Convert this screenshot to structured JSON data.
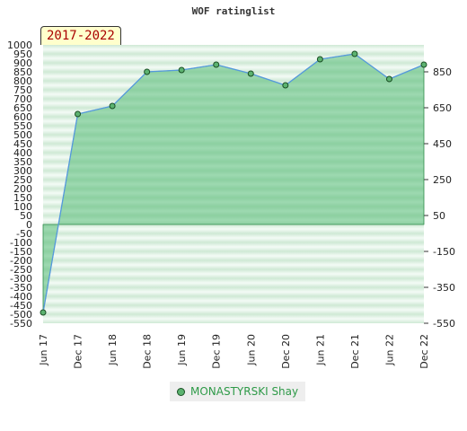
{
  "chart_data": {
    "type": "area",
    "title": "WOF ratinglist",
    "period_label": "2017-2022",
    "categories": [
      "Jun 17",
      "Dec 17",
      "Jun 18",
      "Dec 18",
      "Jun 19",
      "Dec 19",
      "Jun 20",
      "Dec 20",
      "Jun 21",
      "Dec 21",
      "Jun 22",
      "Dec 22"
    ],
    "series": [
      {
        "name": "MONASTYRSKI Shay",
        "values": [
          -490,
          615,
          660,
          850,
          860,
          890,
          840,
          775,
          920,
          950,
          810,
          890
        ]
      }
    ],
    "ylim": [
      -550,
      1000
    ],
    "yticks_left": [
      "1000",
      "950",
      "900",
      "850",
      "800",
      "750",
      "700",
      "650",
      "600",
      "550",
      "500",
      "450",
      "400",
      "350",
      "300",
      "250",
      "200",
      "150",
      "100",
      "50",
      "0",
      "-50",
      "-100",
      "-150",
      "-200",
      "-250",
      "-300",
      "-350",
      "-400",
      "-450",
      "-500",
      "-550"
    ],
    "yticks_right": [
      "850",
      "650",
      "450",
      "250",
      "50",
      "-150",
      "-350",
      "-550"
    ],
    "legend_position": "bottom-center",
    "colors": {
      "line": "#5599dd",
      "fill": "#55bb77",
      "marker": "#5cb370",
      "marker_edge": "#1a4f24",
      "band_dark": "#cfe9d5",
      "band_light": "#f4fbf6",
      "legend_text": "#2e9a48",
      "badge_text": "#aa0000",
      "badge_bg": "#ffffcc"
    }
  }
}
